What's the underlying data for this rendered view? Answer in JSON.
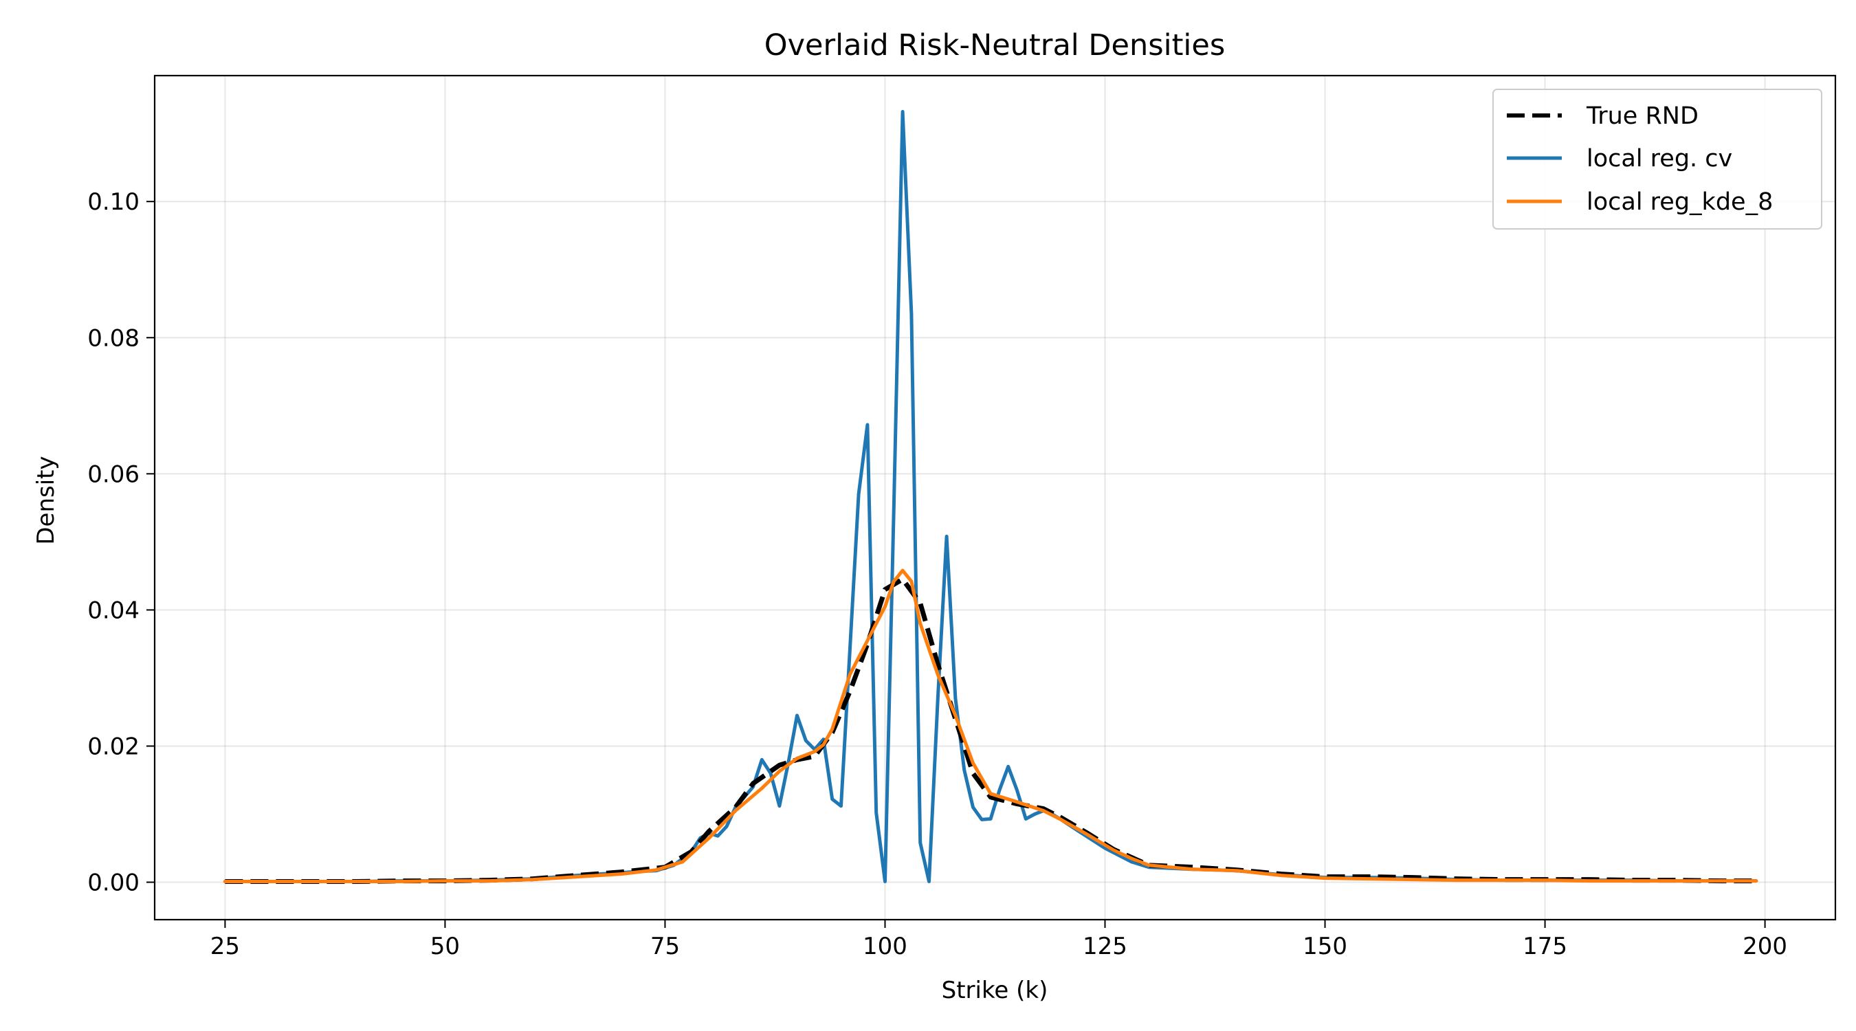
{
  "chart_data": {
    "type": "line",
    "title": "Overlaid Risk-Neutral Densities",
    "xlabel": "Strike (k)",
    "ylabel": "Density",
    "xlim": [
      17,
      208
    ],
    "ylim": [
      -0.0055,
      0.1185
    ],
    "xticks": [
      25,
      50,
      75,
      100,
      125,
      150,
      175,
      200
    ],
    "xtick_labels": [
      "25",
      "50",
      "75",
      "100",
      "125",
      "150",
      "175",
      "200"
    ],
    "yticks": [
      0.0,
      0.02,
      0.04,
      0.06,
      0.08,
      0.1
    ],
    "ytick_labels": [
      "0.00",
      "0.02",
      "0.04",
      "0.06",
      "0.08",
      "0.10"
    ],
    "grid": true,
    "legend_position": "top-right",
    "series": [
      {
        "name": "True RND",
        "color": "#000000",
        "style": "dashed",
        "x": [
          25,
          30,
          35,
          40,
          45,
          50,
          55,
          60,
          65,
          70,
          75,
          78,
          80,
          83,
          85,
          88,
          90,
          92,
          94,
          96,
          98,
          100,
          102,
          104,
          106,
          108,
          110,
          112,
          115,
          118,
          120,
          123,
          126,
          130,
          135,
          140,
          145,
          150,
          155,
          160,
          165,
          170,
          175,
          180,
          185,
          190,
          195,
          199
        ],
        "y": [
          0.0001,
          0.0001,
          0.0001,
          0.0001,
          0.0002,
          0.0002,
          0.0003,
          0.0005,
          0.001,
          0.0015,
          0.0022,
          0.0045,
          0.0075,
          0.011,
          0.0145,
          0.0172,
          0.018,
          0.0185,
          0.022,
          0.028,
          0.035,
          0.043,
          0.0445,
          0.041,
          0.032,
          0.024,
          0.016,
          0.0125,
          0.0115,
          0.0108,
          0.0095,
          0.0072,
          0.0048,
          0.0025,
          0.0022,
          0.0018,
          0.0012,
          0.0008,
          0.0008,
          0.0007,
          0.0005,
          0.0004,
          0.0004,
          0.0004,
          0.0003,
          0.0003,
          0.0002,
          0.0002
        ]
      },
      {
        "name": "local reg. cv",
        "color": "#1f77b4",
        "style": "solid",
        "x": [
          25,
          30,
          35,
          40,
          45,
          50,
          55,
          60,
          65,
          70,
          72,
          74,
          76,
          78,
          79,
          80,
          81,
          82,
          83,
          84,
          85,
          86,
          87,
          88,
          89,
          90,
          91,
          92,
          93,
          94,
          95,
          96,
          97,
          98,
          99,
          100,
          101,
          102,
          103,
          104,
          105,
          106,
          107,
          108,
          109,
          110,
          111,
          112,
          113,
          114,
          115,
          116,
          117,
          118,
          119,
          120,
          122,
          125,
          128,
          130,
          135,
          140,
          145,
          150,
          155,
          160,
          165,
          170,
          175,
          180,
          185,
          190,
          195,
          199
        ],
        "y": [
          0.0001,
          0.0001,
          0.0001,
          0.0001,
          0.0002,
          0.0002,
          0.0003,
          0.0005,
          0.001,
          0.0014,
          0.0016,
          0.0017,
          0.0025,
          0.0045,
          0.0065,
          0.0072,
          0.0068,
          0.0082,
          0.011,
          0.0125,
          0.014,
          0.018,
          0.016,
          0.0112,
          0.0175,
          0.0245,
          0.0208,
          0.0195,
          0.021,
          0.0122,
          0.0112,
          0.034,
          0.057,
          0.0672,
          0.0102,
          0.0001,
          0.055,
          0.1132,
          0.0835,
          0.0058,
          0.0001,
          0.027,
          0.0508,
          0.027,
          0.0165,
          0.011,
          0.0092,
          0.0093,
          0.0135,
          0.017,
          0.0135,
          0.0093,
          0.01,
          0.0105,
          0.01,
          0.0092,
          0.0075,
          0.005,
          0.003,
          0.0022,
          0.0019,
          0.0017,
          0.0011,
          0.0007,
          0.0007,
          0.0006,
          0.0004,
          0.0003,
          0.0003,
          0.0003,
          0.0003,
          0.0002,
          0.0002,
          0.0002
        ]
      },
      {
        "name": "local reg_kde_8",
        "color": "#ff7f0e",
        "style": "solid",
        "x": [
          25,
          30,
          35,
          40,
          45,
          50,
          55,
          60,
          65,
          70,
          74,
          77,
          80,
          83,
          86,
          88,
          90,
          92,
          93,
          94,
          96,
          98,
          100,
          101,
          102,
          103,
          104,
          106,
          108,
          110,
          112,
          115,
          118,
          120,
          123,
          126,
          128,
          130,
          135,
          140,
          145,
          150,
          155,
          160,
          165,
          170,
          175,
          180,
          185,
          190,
          195,
          199
        ],
        "y": [
          0.0001,
          0.0001,
          0.0001,
          0.0001,
          0.0001,
          0.0002,
          0.0002,
          0.0004,
          0.0008,
          0.0012,
          0.0018,
          0.003,
          0.0065,
          0.0105,
          0.0138,
          0.0163,
          0.0182,
          0.0192,
          0.0202,
          0.0225,
          0.0305,
          0.0355,
          0.0405,
          0.0442,
          0.0458,
          0.0442,
          0.038,
          0.0305,
          0.0245,
          0.0175,
          0.013,
          0.0118,
          0.0105,
          0.0092,
          0.007,
          0.0047,
          0.0035,
          0.0025,
          0.0019,
          0.0017,
          0.001,
          0.0006,
          0.0005,
          0.0004,
          0.0003,
          0.0003,
          0.0003,
          0.0002,
          0.0002,
          0.0002,
          0.0002,
          0.0002
        ]
      }
    ]
  }
}
